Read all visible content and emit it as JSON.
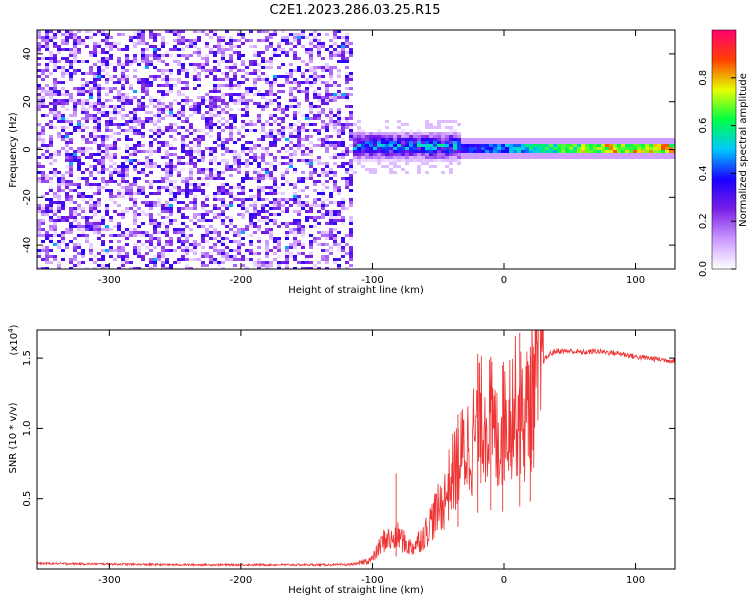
{
  "figure_title": "C2E1.2023.286.03.25.R15",
  "chart_data": [
    {
      "type": "heatmap",
      "xlabel": "Height of straight line (km)",
      "ylabel": "Frequency (Hz)",
      "xlim": [
        -355,
        130
      ],
      "ylim": [
        -50,
        50
      ],
      "x_ticks": [
        -300,
        -200,
        -100,
        0,
        100
      ],
      "y_ticks": [
        -40,
        -20,
        0,
        20,
        40
      ],
      "colorbar": {
        "label": "Normalized spectral amplitude",
        "range": [
          0,
          1
        ],
        "ticks": [
          "0.0",
          "0.2",
          "0.4",
          "0.6",
          "0.8"
        ],
        "colors": [
          "#ffffff",
          "#cc99ff",
          "#7a1fe6",
          "#1a00ff",
          "#00c8ff",
          "#00ff44",
          "#e6ff00",
          "#ff4000",
          "#ff0070"
        ]
      },
      "regions": [
        {
          "desc": "broadband noise",
          "x": [
            -355,
            -115
          ],
          "y": [
            -50,
            50
          ],
          "amplitude": 0.15
        },
        {
          "desc": "narrow signal band",
          "x": [
            -115,
            -35
          ],
          "y_center": 2,
          "y_halfwidth": 7,
          "amplitude": 0.45
        },
        {
          "desc": "carrier line",
          "x": [
            -35,
            130
          ],
          "y_center": 1,
          "y_halfwidth": 2,
          "amplitude": 0.8
        }
      ]
    },
    {
      "type": "line",
      "xlabel": "Height of straight line (km)",
      "ylabel": "SNR (10 * v/v)",
      "y_multiplier": "(x10",
      "y_multiplier_exp": "4",
      "y_multiplier_close": ")",
      "xlim": [
        -355,
        130
      ],
      "ylim": [
        0,
        17000
      ],
      "x_ticks": [
        -300,
        -200,
        -100,
        0,
        100
      ],
      "y_ticks": [
        5000,
        10000,
        15000
      ],
      "y_tick_labels": [
        "0.5",
        "1.0",
        "1.5"
      ],
      "color": "#ee3333",
      "series": [
        {
          "x": [
            -355,
            -300,
            -250,
            -200,
            -150,
            -120,
            -110,
            -100,
            -95,
            -90,
            -85,
            -80,
            -75,
            -70,
            -65,
            -60,
            -55,
            -50,
            -45,
            -40,
            -35,
            -30,
            -25,
            -20,
            -15,
            -10,
            -5,
            0,
            5,
            10,
            15,
            20,
            25,
            30,
            35,
            40,
            50,
            60,
            70,
            80,
            90,
            100,
            110,
            120,
            130
          ],
          "y": [
            400,
            350,
            300,
            300,
            300,
            300,
            400,
            700,
            1500,
            2200,
            2000,
            2400,
            1800,
            1500,
            2000,
            2500,
            3500,
            4200,
            5000,
            6500,
            7500,
            8500,
            9000,
            10000,
            11000,
            10500,
            9000,
            10500,
            11500,
            11500,
            10500,
            12000,
            13500,
            14800,
            15300,
            15500,
            15500,
            15400,
            15500,
            15400,
            15300,
            15100,
            15000,
            14900,
            14800
          ]
        }
      ],
      "spikes": [
        {
          "x": -82,
          "y": 6800
        },
        {
          "x": -35,
          "y": 11000
        },
        {
          "x": -20,
          "y": 15300
        },
        {
          "x": -10,
          "y": 15100
        },
        {
          "x": -1,
          "y": 14500
        },
        {
          "x": 12,
          "y": 16800
        },
        {
          "x": 20,
          "y": 15800
        }
      ]
    }
  ]
}
